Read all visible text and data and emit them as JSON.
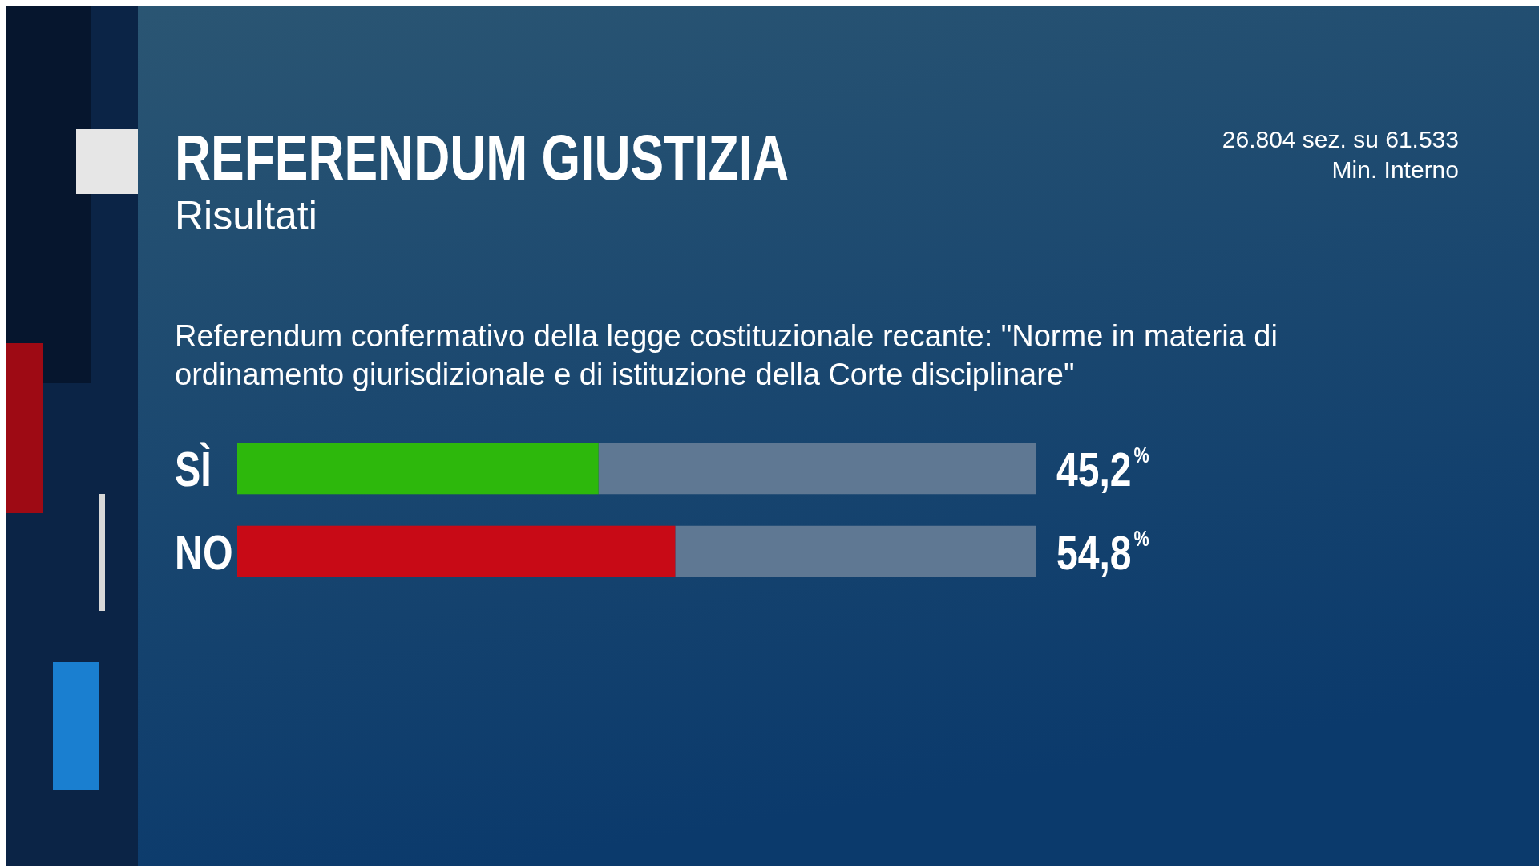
{
  "chart_data": {
    "type": "bar",
    "orientation": "horizontal",
    "title": "REFERENDUM GIUSTIZIA",
    "subtitle": "Risultati",
    "annotations": [
      "26.804 sez. su 61.533",
      "Min. Interno",
      "Referendum confermativo della legge costituzionale recante: \"Norme in materia di ordinamento giurisdizionale e di istituzione della Corte disciplinare\""
    ],
    "categories": [
      "SÌ",
      "NO"
    ],
    "values": [
      45.2,
      54.8
    ],
    "colors": [
      "#2db80c",
      "#c80a16"
    ],
    "value_labels": [
      "45,2$^{%}$",
      "54,8$^{%}$"
    ],
    "tick_labels": "y"
  }
}
